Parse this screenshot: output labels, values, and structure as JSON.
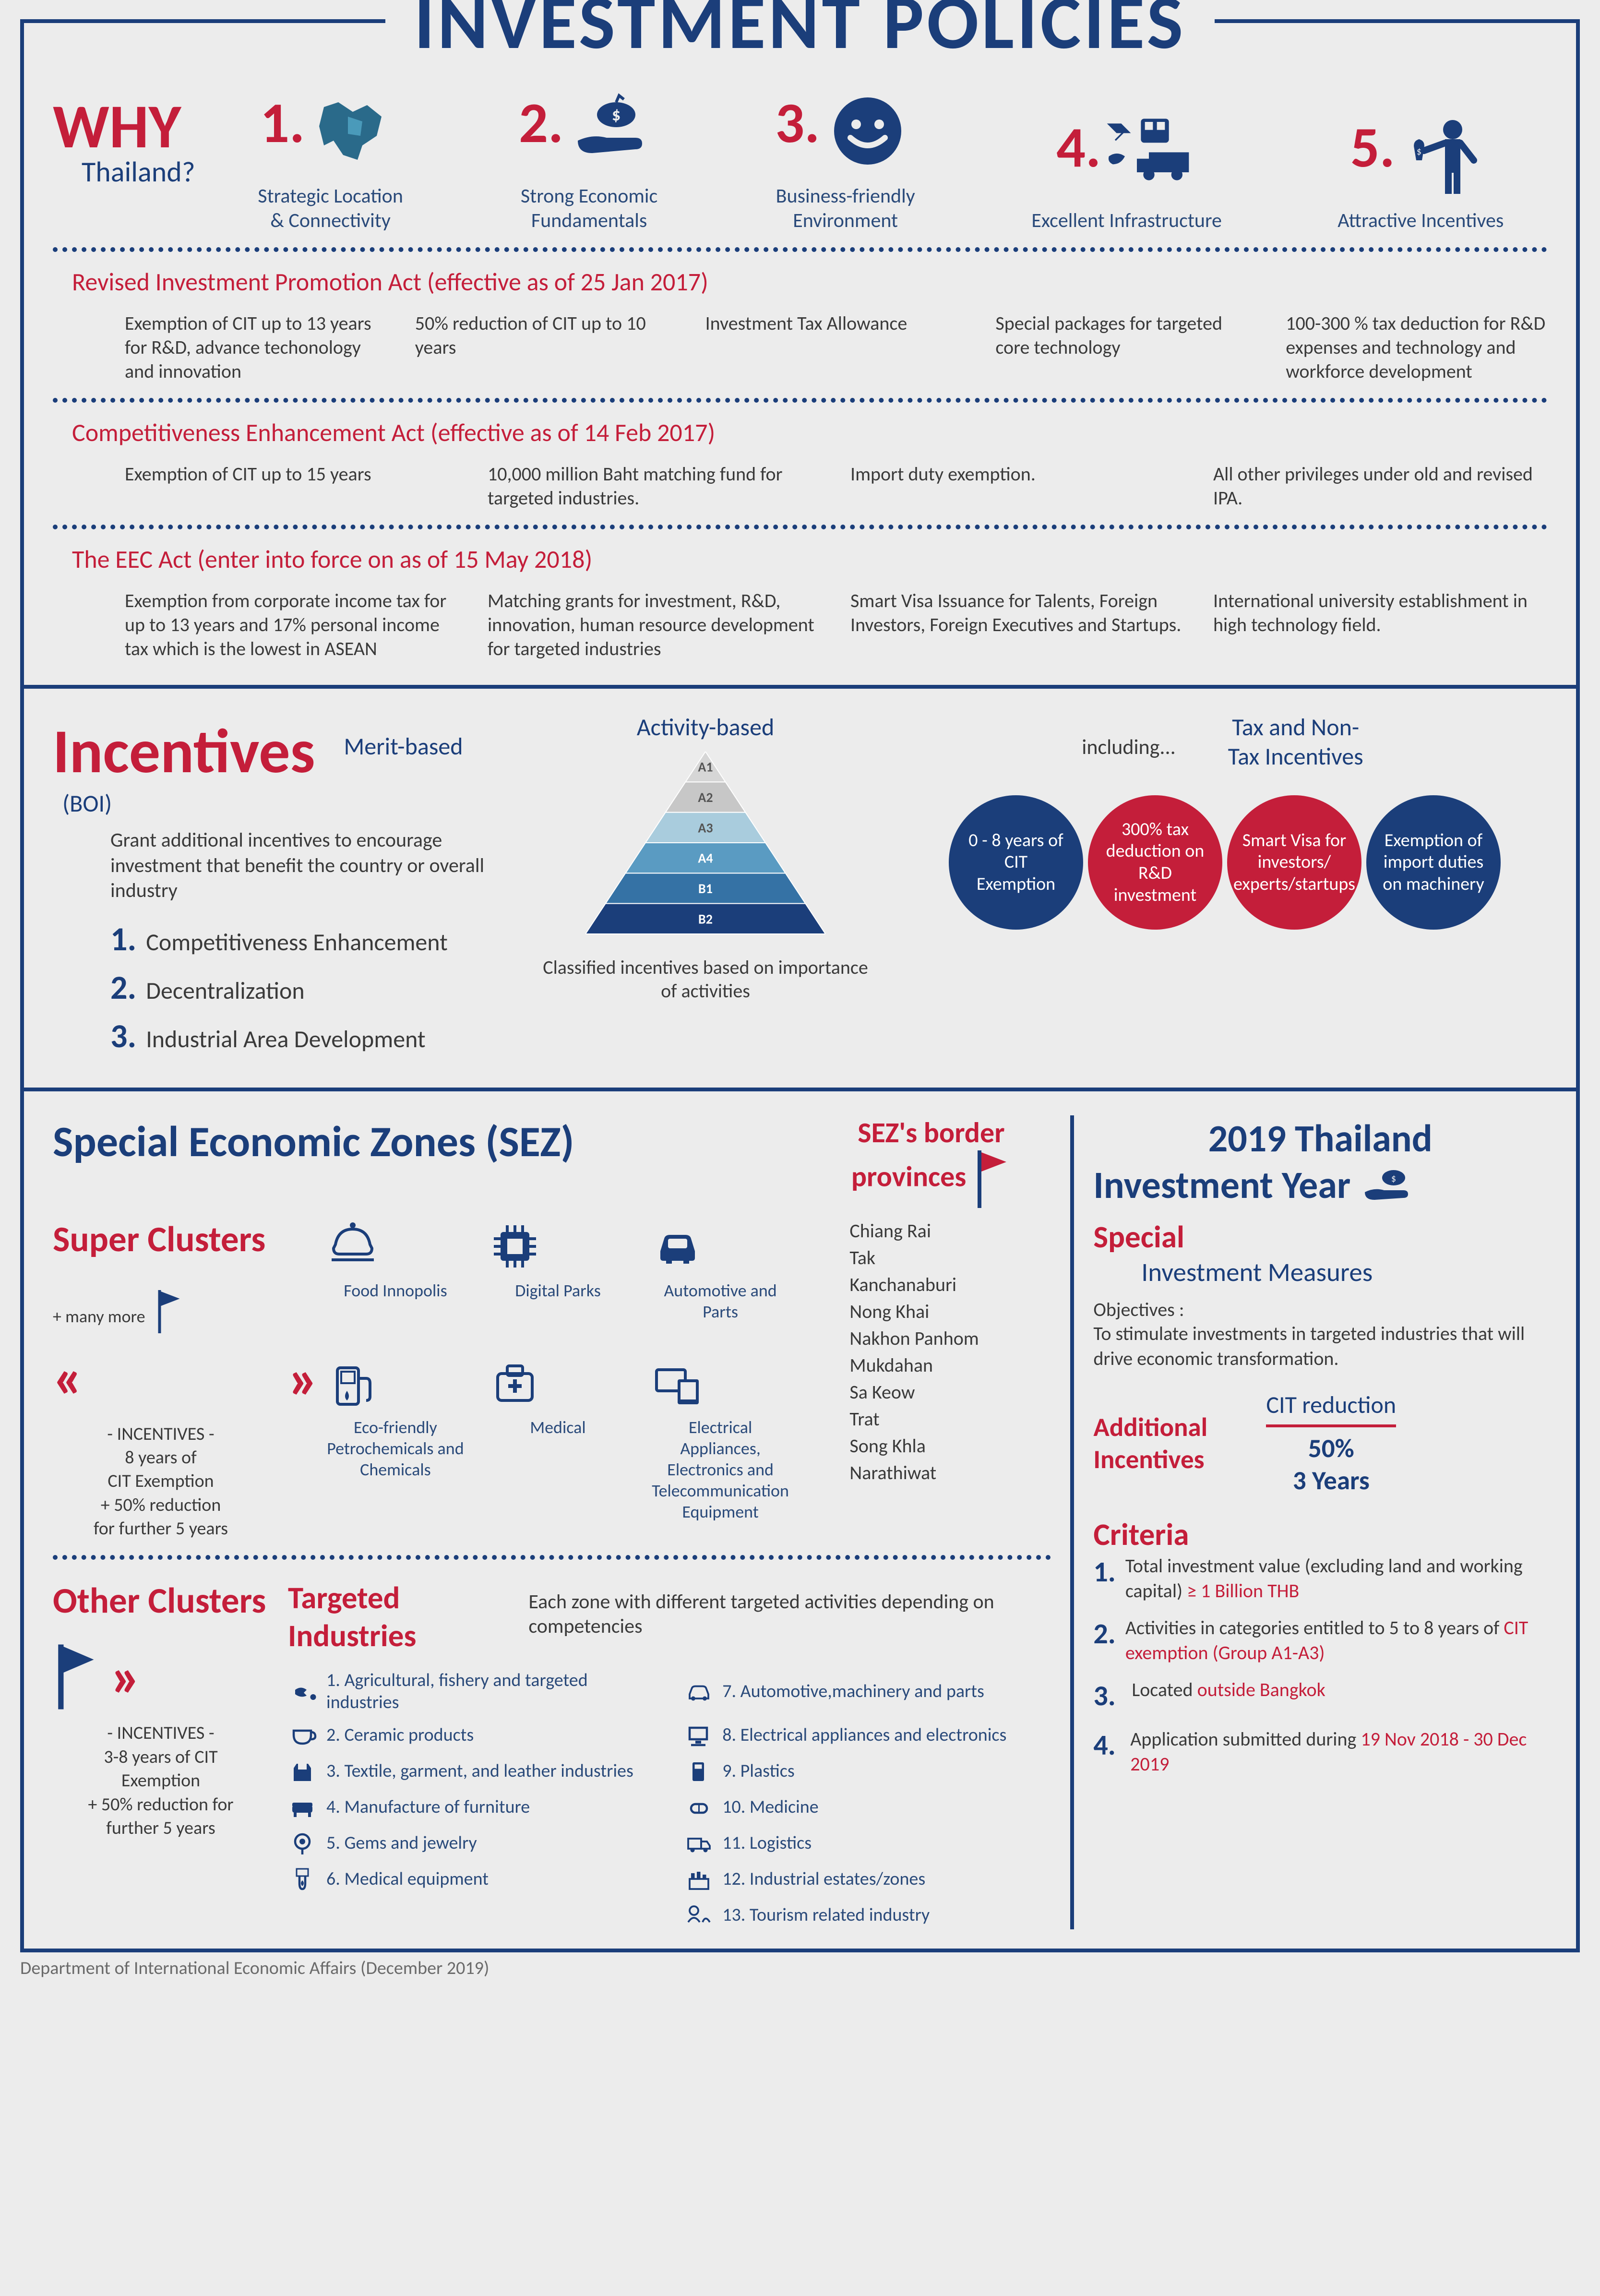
{
  "title": "INVESTMENT POLICIES",
  "colors": {
    "blue": "#1b3e7a",
    "red": "#c41e3a",
    "bg": "#ececec",
    "text": "#3a3a3a"
  },
  "why": {
    "big": "WHY",
    "sub": "Thailand?",
    "items": [
      {
        "num": "1.",
        "caption": "Strategic Location\n& Connectivity",
        "icon": "map"
      },
      {
        "num": "2.",
        "caption": "Strong Economic\nFundamentals",
        "icon": "money-hand"
      },
      {
        "num": "3.",
        "caption": "Business-friendly\nEnvironment",
        "icon": "smile"
      },
      {
        "num": "4.",
        "caption": "Excellent Infrastructure",
        "icon": "transport"
      },
      {
        "num": "5.",
        "caption": "Attractive Incentives",
        "icon": "person-money"
      }
    ]
  },
  "acts": [
    {
      "title": "Revised Investment Promotion Act (effective as of 25 Jan 2017)",
      "items": [
        "Exemption of CIT up to 13 years for R&D, advance techonology and innovation",
        "50% reduction of CIT up to 10 years",
        "Investment Tax Allowance",
        "Special packages for targeted core technology",
        "100-300 % tax deduction for R&D expenses and technology and workforce development"
      ]
    },
    {
      "title": "Competitiveness Enhancement Act (effective as of 14 Feb 2017)",
      "items": [
        "Exemption of CIT up to 15 years",
        "10,000 million Baht matching fund for targeted industries.",
        "Import duty exemption.",
        "All other privileges under old and revised IPA."
      ]
    },
    {
      "title": "The EEC Act (enter into force on as of 15 May 2018)",
      "items": [
        "Exemption from corporate income tax for up to 13 years and 17% personal income tax which is the lowest in ASEAN",
        "Matching grants for investment, R&D, innovation, human resource development for targeted industries",
        "Smart Visa Issuance for Talents, Foreign Investors, Foreign Executives and Startups.",
        "International university establishment in high technology field."
      ]
    }
  ],
  "incentives": {
    "title": "Incentives",
    "sub": "(BOI)",
    "merit_title": "Merit-based",
    "desc": "Grant additional incentives to encourage investment that benefit the country or overall industry",
    "merit_items": [
      "Competitiveness Enhancement",
      "Decentralization",
      "Industrial Area Development"
    ],
    "activity_title": "Activity-based",
    "pyramid": [
      "A1",
      "A2",
      "A3",
      "A4",
      "B1",
      "B2"
    ],
    "pyramid_colors": [
      "#d6d6d6",
      "#c7c7c7",
      "#a9ccdd",
      "#5a9bc2",
      "#3572a5",
      "#1b3e7a"
    ],
    "pyramid_caption": "Classified incentives based on importance of activities",
    "including": "including...",
    "taxnontax": "Tax and Non-Tax Incentives",
    "circles": [
      {
        "text": "0 - 8 years of CIT Exemption",
        "color": "blue"
      },
      {
        "text": "300% tax deduction on R&D investment",
        "color": "red"
      },
      {
        "text": "Smart Visa for investors/ experts/startups",
        "color": "red"
      },
      {
        "text": "Exemption of import duties on machinery",
        "color": "blue"
      }
    ]
  },
  "sez": {
    "title": "Special Economic Zones (SEZ)",
    "super_title": "Super Clusters",
    "super_sub": "+ many more",
    "super_inc": "- INCENTIVES -\n8 years of\nCIT Exemption\n+ 50% reduction\nfor further 5 years",
    "icons": [
      {
        "label": "Food Innopolis",
        "icon": "food"
      },
      {
        "label": "Digital Parks",
        "icon": "chip"
      },
      {
        "label": "Automotive and Parts",
        "icon": "car"
      },
      {
        "label": "Eco-friendly Petrochemicals and Chemicals",
        "icon": "fuel"
      },
      {
        "label": "Medical",
        "icon": "medical"
      },
      {
        "label": "Electrical Appliances, Electronics and Telecommunication Equipment",
        "icon": "devices"
      }
    ],
    "prov_title": "SEZ's border provinces",
    "provinces": [
      "Chiang Rai",
      "Tak",
      "Kanchanaburi",
      "Nong Khai",
      "Nakhon Panhom",
      "Mukdahan",
      "Sa Keow",
      "Trat",
      "Song Khla",
      "Narathiwat"
    ],
    "other_title": "Other Clusters",
    "other_inc": "- INCENTIVES -\n3-8 years of CIT\nExemption\n+ 50% reduction for\nfurther 5 years",
    "targeted_title": "Targeted Industries",
    "targeted_sub": "Each zone with different targeted activities depending on competencies",
    "targeted": [
      "1. Agricultural, fishery and targeted industries",
      "2. Ceramic products",
      "3. Textile, garment, and leather industries",
      "4. Manufacture of furniture",
      "5. Gems and jewelry",
      "6. Medical equipment",
      "7. Automotive,machinery and parts",
      "8. Electrical appliances and electronics",
      "9. Plastics",
      "10. Medicine",
      "11. Logistics",
      "12. Industrial estates/zones",
      "13. Tourism related industry"
    ]
  },
  "year": {
    "title1": "2019  Thailand",
    "title2": "Investment Year",
    "special": "Special",
    "measures": "Investment  Measures",
    "obj_title": "Objectives :",
    "obj_text": "To stimulate investments in targeted industries that will drive economic transformation.",
    "addl": "Additional Incentives",
    "cit_top": "CIT reduction",
    "cit_bot": "50%\n3 Years",
    "criteria_title": "Criteria",
    "criteria": [
      {
        "n": "1.",
        "text": "Total investment value (excluding land and working capital) ",
        "red": "≥ 1 Billion THB"
      },
      {
        "n": "2.",
        "text": "Activities in categories entitled to 5 to 8 years of ",
        "red": "CIT exemption (Group A1-A3)"
      },
      {
        "n": "3.",
        "text": "Located ",
        "red": "outside Bangkok"
      },
      {
        "n": "4.",
        "text": "Application submitted during ",
        "red": "19 Nov 2018 - 30 Dec 2019"
      }
    ]
  },
  "footer": "Department of International Economic Affairs  (December 2019)"
}
